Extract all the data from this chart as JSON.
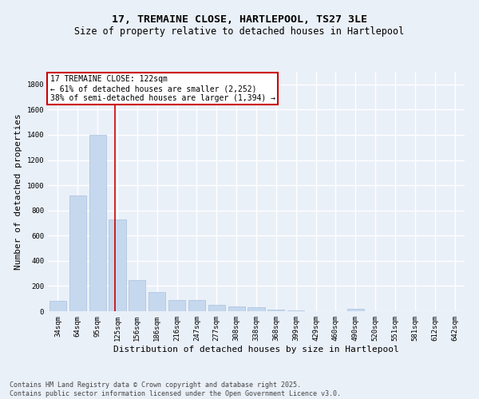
{
  "title1": "17, TREMAINE CLOSE, HARTLEPOOL, TS27 3LE",
  "title2": "Size of property relative to detached houses in Hartlepool",
  "xlabel": "Distribution of detached houses by size in Hartlepool",
  "ylabel": "Number of detached properties",
  "categories": [
    "34sqm",
    "64sqm",
    "95sqm",
    "125sqm",
    "156sqm",
    "186sqm",
    "216sqm",
    "247sqm",
    "277sqm",
    "308sqm",
    "338sqm",
    "368sqm",
    "399sqm",
    "429sqm",
    "460sqm",
    "490sqm",
    "520sqm",
    "551sqm",
    "581sqm",
    "612sqm",
    "642sqm"
  ],
  "values": [
    85,
    920,
    1400,
    730,
    248,
    150,
    90,
    90,
    50,
    35,
    30,
    12,
    5,
    0,
    0,
    20,
    0,
    0,
    0,
    0,
    0
  ],
  "bar_color": "#c5d8ee",
  "bar_edgecolor": "#a8c0dd",
  "background_color": "#eaf0f8",
  "grid_color": "#ffffff",
  "property_line_x": 2.88,
  "property_label": "17 TREMAINE CLOSE: 122sqm",
  "annotation_line1": "← 61% of detached houses are smaller (2,252)",
  "annotation_line2": "38% of semi-detached houses are larger (1,394) →",
  "annotation_box_facecolor": "#ffffff",
  "annotation_box_edgecolor": "#cc0000",
  "vline_color": "#cc0000",
  "ylim": [
    0,
    1900
  ],
  "yticks": [
    0,
    200,
    400,
    600,
    800,
    1000,
    1200,
    1400,
    1600,
    1800
  ],
  "footnote1": "Contains HM Land Registry data © Crown copyright and database right 2025.",
  "footnote2": "Contains public sector information licensed under the Open Government Licence v3.0.",
  "title_fontsize": 9.5,
  "subtitle_fontsize": 8.5,
  "tick_fontsize": 6.5,
  "ylabel_fontsize": 8,
  "xlabel_fontsize": 8,
  "annotation_fontsize": 7,
  "footnote_fontsize": 6
}
